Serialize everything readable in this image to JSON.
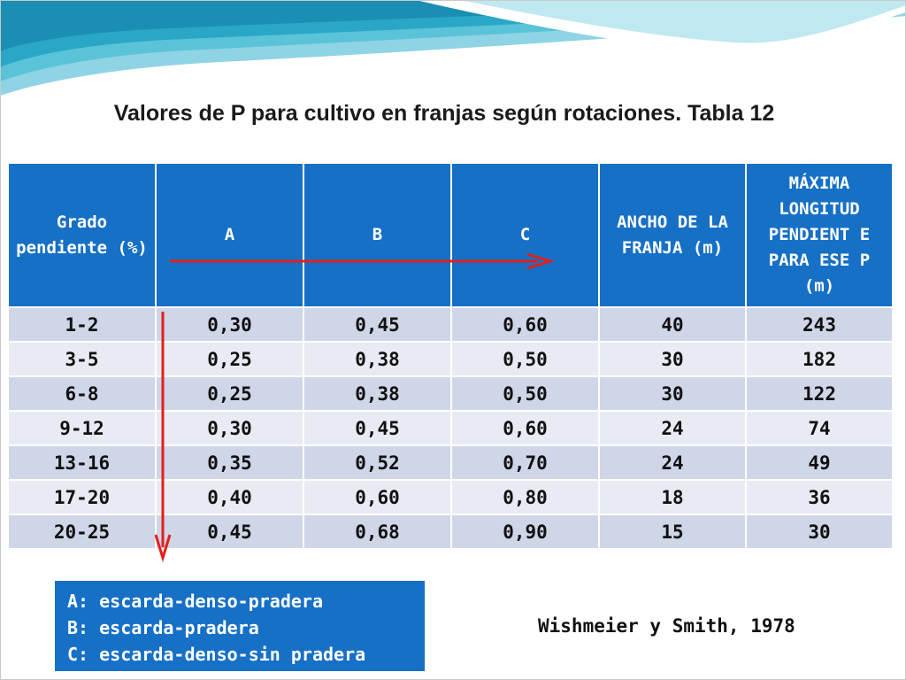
{
  "title": "Valores de P para cultivo en franjas según rotaciones. Tabla 12",
  "table": {
    "headers": [
      "Grado pendiente (%)",
      "A",
      "B",
      "C",
      "ANCHO DE LA FRANJA (m)",
      "MÁXIMA LONGITUD PENDIENT E PARA ESE P (m)"
    ],
    "rows": [
      [
        "1-2",
        "0,30",
        "0,45",
        "0,60",
        "40",
        "243"
      ],
      [
        "3-5",
        "0,25",
        "0,38",
        "0,50",
        "30",
        "182"
      ],
      [
        "6-8",
        "0,25",
        "0,38",
        "0,50",
        "30",
        "122"
      ],
      [
        "9-12",
        "0,30",
        "0,45",
        "0,60",
        "24",
        "74"
      ],
      [
        "13-16",
        "0,35",
        "0,52",
        "0,70",
        "24",
        "49"
      ],
      [
        "17-20",
        "0,40",
        "0,60",
        "0,80",
        "18",
        "36"
      ],
      [
        "20-25",
        "0,45",
        "0,68",
        "0,90",
        "15",
        "30"
      ]
    ]
  },
  "legend": [
    "A: escarda-denso-pradera",
    "B: escarda-pradera",
    "C: escarda-denso-sin pradera"
  ],
  "source": "Wishmeier y Smith, 1978",
  "colors": {
    "header_fill": "#1670c6",
    "row_odd": "#cfd6e8",
    "row_even": "#e8ebf4",
    "arrow": "#e0201b",
    "wave": "#5bc3d8"
  },
  "icons": {
    "horizontal_arrow": "arrow-right-icon",
    "vertical_arrow": "arrow-down-icon"
  }
}
